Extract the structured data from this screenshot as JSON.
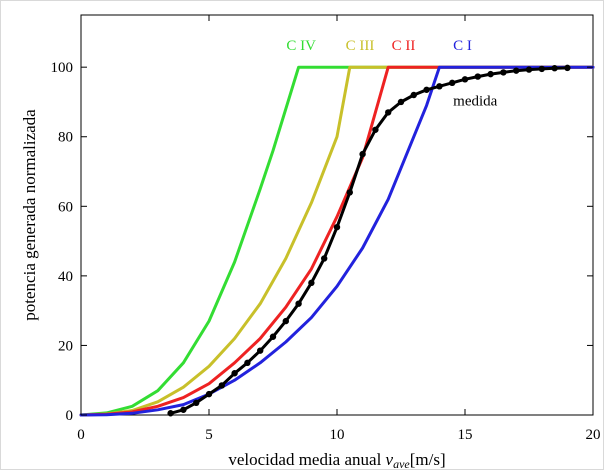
{
  "chart_data": {
    "type": "line",
    "xlabel_main": "velocidad media anual ",
    "xlabel_var": "v",
    "xlabel_sub": "ave",
    "xlabel_unit": "[m/s]",
    "ylabel": "potencia generada normalizada",
    "xlim": [
      0,
      20
    ],
    "ylim": [
      0,
      115
    ],
    "xticks": [
      0,
      5,
      10,
      15,
      20
    ],
    "yticks": [
      0,
      20,
      40,
      60,
      80,
      100
    ],
    "grid": false,
    "series": [
      {
        "name": "C IV",
        "color": "#33dd33",
        "label_at": [
          8.6,
          105
        ],
        "x": [
          0,
          1,
          2,
          3,
          4,
          5,
          6,
          7,
          7.5,
          8,
          8.5,
          20
        ],
        "y": [
          0,
          0.6,
          2.5,
          7,
          15,
          27,
          44,
          65,
          76,
          88,
          100,
          100
        ]
      },
      {
        "name": "C III",
        "color": "#c8c02a",
        "label_at": [
          10.9,
          105
        ],
        "x": [
          0,
          1,
          2,
          3,
          4,
          5,
          6,
          7,
          8,
          9,
          10,
          10.5,
          20
        ],
        "y": [
          0,
          0.3,
          1.3,
          3.8,
          8,
          14,
          22,
          32,
          45,
          61,
          80,
          100,
          100
        ]
      },
      {
        "name": "C II",
        "color": "#ee2222",
        "label_at": [
          12.6,
          105
        ],
        "x": [
          0,
          1,
          2,
          3,
          4,
          5,
          6,
          7,
          8,
          9,
          10,
          11,
          11.5,
          12,
          20
        ],
        "y": [
          0,
          0.2,
          0.9,
          2.5,
          5,
          9,
          15,
          22,
          31,
          42,
          57,
          74,
          87,
          100,
          100
        ]
      },
      {
        "name": "C I",
        "color": "#2222dd",
        "label_at": [
          14.9,
          105
        ],
        "x": [
          0,
          1,
          2,
          3,
          4,
          5,
          6,
          7,
          8,
          9,
          10,
          11,
          12,
          13,
          13.5,
          14,
          20
        ],
        "y": [
          0,
          0.1,
          0.5,
          1.5,
          3,
          6,
          10,
          15,
          21,
          28,
          37,
          48,
          62,
          80,
          89,
          100,
          100
        ]
      },
      {
        "name": "medida",
        "color": "#000000",
        "label_at": [
          15.4,
          89
        ],
        "markers": true,
        "x": [
          3.5,
          4,
          4.5,
          5,
          5.5,
          6,
          6.5,
          7,
          7.5,
          8,
          8.5,
          9,
          9.5,
          10,
          10.5,
          11,
          11.5,
          12,
          12.5,
          13,
          13.5,
          14,
          14.5,
          15,
          15.5,
          16,
          16.5,
          17,
          17.5,
          18,
          18.5,
          19
        ],
        "y": [
          0.5,
          1.5,
          3.5,
          6,
          8.5,
          12,
          15,
          18.5,
          22.5,
          27,
          32,
          38,
          45,
          54,
          64,
          75,
          82,
          87,
          90,
          92,
          93.5,
          94.5,
          95.5,
          96.5,
          97.3,
          98,
          98.5,
          99,
          99.3,
          99.5,
          99.7,
          99.8
        ]
      }
    ]
  }
}
